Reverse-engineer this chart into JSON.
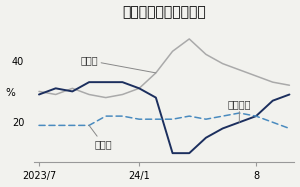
{
  "title": "軽自動車の販売シェア",
  "ylabel": "%",
  "yticks": [
    20,
    40
  ],
  "ylim": [
    7,
    52
  ],
  "xtick_labels": [
    "2023/7",
    "24/1",
    "8"
  ],
  "ann_suzuki": "スズキ",
  "ann_daihatsu": "ダイハツ",
  "ann_honda": "ホンダ",
  "suzuki_color": "#aaaaaa",
  "daihatsu_color": "#1c2f5e",
  "honda_color": "#4a8bbf",
  "background": "#f2f2ee",
  "suzuki": [
    30,
    29,
    31,
    29,
    28,
    29,
    31,
    36,
    43,
    47,
    42,
    39,
    37,
    35,
    33,
    32
  ],
  "daihatsu": [
    29,
    31,
    30,
    33,
    33,
    33,
    31,
    28,
    10,
    10,
    15,
    18,
    20,
    22,
    27,
    29
  ],
  "honda": [
    19,
    19,
    19,
    19,
    22,
    22,
    21,
    21,
    21,
    22,
    21,
    22,
    23,
    22,
    20,
    18
  ],
  "n_points": 16,
  "xtick_indices": [
    0,
    6,
    13
  ]
}
